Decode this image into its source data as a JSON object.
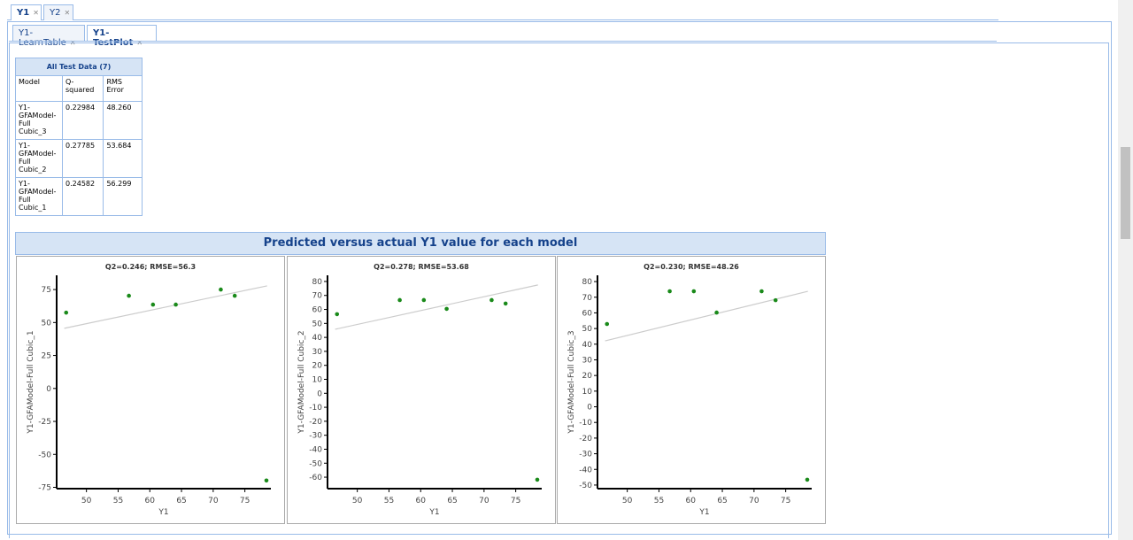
{
  "tabs": [
    "Y1",
    "Y2"
  ],
  "subtabs": [
    "Y1-LearnTable",
    "Y1-TestPlot"
  ],
  "table": {
    "title": "All Test Data (7)",
    "headers": [
      "Model",
      "Q-squared",
      "RMS Error"
    ],
    "rows": [
      [
        "Y1-GFAModel-Full Cubic_3",
        "0.22984",
        "48.260"
      ],
      [
        "Y1-GFAModel-Full Cubic_2",
        "0.27785",
        "53.684"
      ],
      [
        "Y1-GFAModel-Full Cubic_1",
        "0.24582",
        "56.299"
      ]
    ]
  },
  "panel_title": "Predicted versus actual Y1 value for each model",
  "chart_data": [
    {
      "type": "scatter",
      "title": "Q2=0.246; RMSE=56.3",
      "x_label": "Y1",
      "y_label": "Y1-GFAModel-Full Cubic_1",
      "color": "#1a8a1a",
      "x": [
        46.8,
        56.7,
        60.5,
        64.1,
        71.2,
        73.4,
        78.4
      ],
      "values": [
        57.5,
        70.3,
        63.6,
        63.6,
        75,
        70.3,
        -69.8
      ],
      "fit": {
        "x": [
          46.5,
          78.5
        ],
        "y": [
          45.6,
          77.8
        ]
      },
      "xlim": [
        45.3,
        79.1
      ],
      "xticks": [
        50,
        55,
        60,
        65,
        70,
        75
      ],
      "ylim": [
        -76,
        85.8
      ],
      "yticks": [
        75,
        50,
        25,
        0,
        -25,
        -50,
        -75
      ]
    },
    {
      "type": "scatter",
      "title": "Q2=0.278; RMSE=53.68",
      "x_label": "Y1",
      "y_label": "Y1-GFAModel-Full Cubic_2",
      "color": "#1a8a1a",
      "x": [
        46.8,
        56.7,
        60.5,
        64.1,
        71.2,
        73.4,
        78.4
      ],
      "values": [
        56.6,
        66.7,
        66.7,
        60.4,
        66.7,
        64.2,
        -61.8
      ],
      "fit": {
        "x": [
          46.5,
          78.5
        ],
        "y": [
          45.8,
          77.5
        ]
      },
      "xlim": [
        45.3,
        79.1
      ],
      "xticks": [
        50,
        55,
        60,
        65,
        70,
        75
      ],
      "ylim": [
        -68.2,
        84.4
      ],
      "yticks": [
        80,
        70,
        60,
        50,
        40,
        30,
        20,
        10,
        0,
        -10,
        -20,
        -30,
        -40,
        -50,
        -60
      ]
    },
    {
      "type": "scatter",
      "title": "Q2=0.230; RMSE=48.26",
      "x_label": "Y1",
      "y_label": "Y1-GFAModel-Full Cubic_3",
      "color": "#1a8a1a",
      "x": [
        46.8,
        56.7,
        60.5,
        64.1,
        71.2,
        73.4,
        78.4
      ],
      "values": [
        52.9,
        73.8,
        73.8,
        60.2,
        73.8,
        68.1,
        -46.6
      ],
      "fit": {
        "x": [
          46.5,
          78.5
        ],
        "y": [
          42.1,
          73.8
        ]
      },
      "xlim": [
        45.3,
        79.1
      ],
      "xticks": [
        50,
        55,
        60,
        65,
        70,
        75
      ],
      "ylim": [
        -52.3,
        84
      ],
      "yticks": [
        80,
        70,
        60,
        50,
        40,
        30,
        20,
        10,
        0,
        -10,
        -20,
        -30,
        -40,
        -50
      ]
    }
  ]
}
